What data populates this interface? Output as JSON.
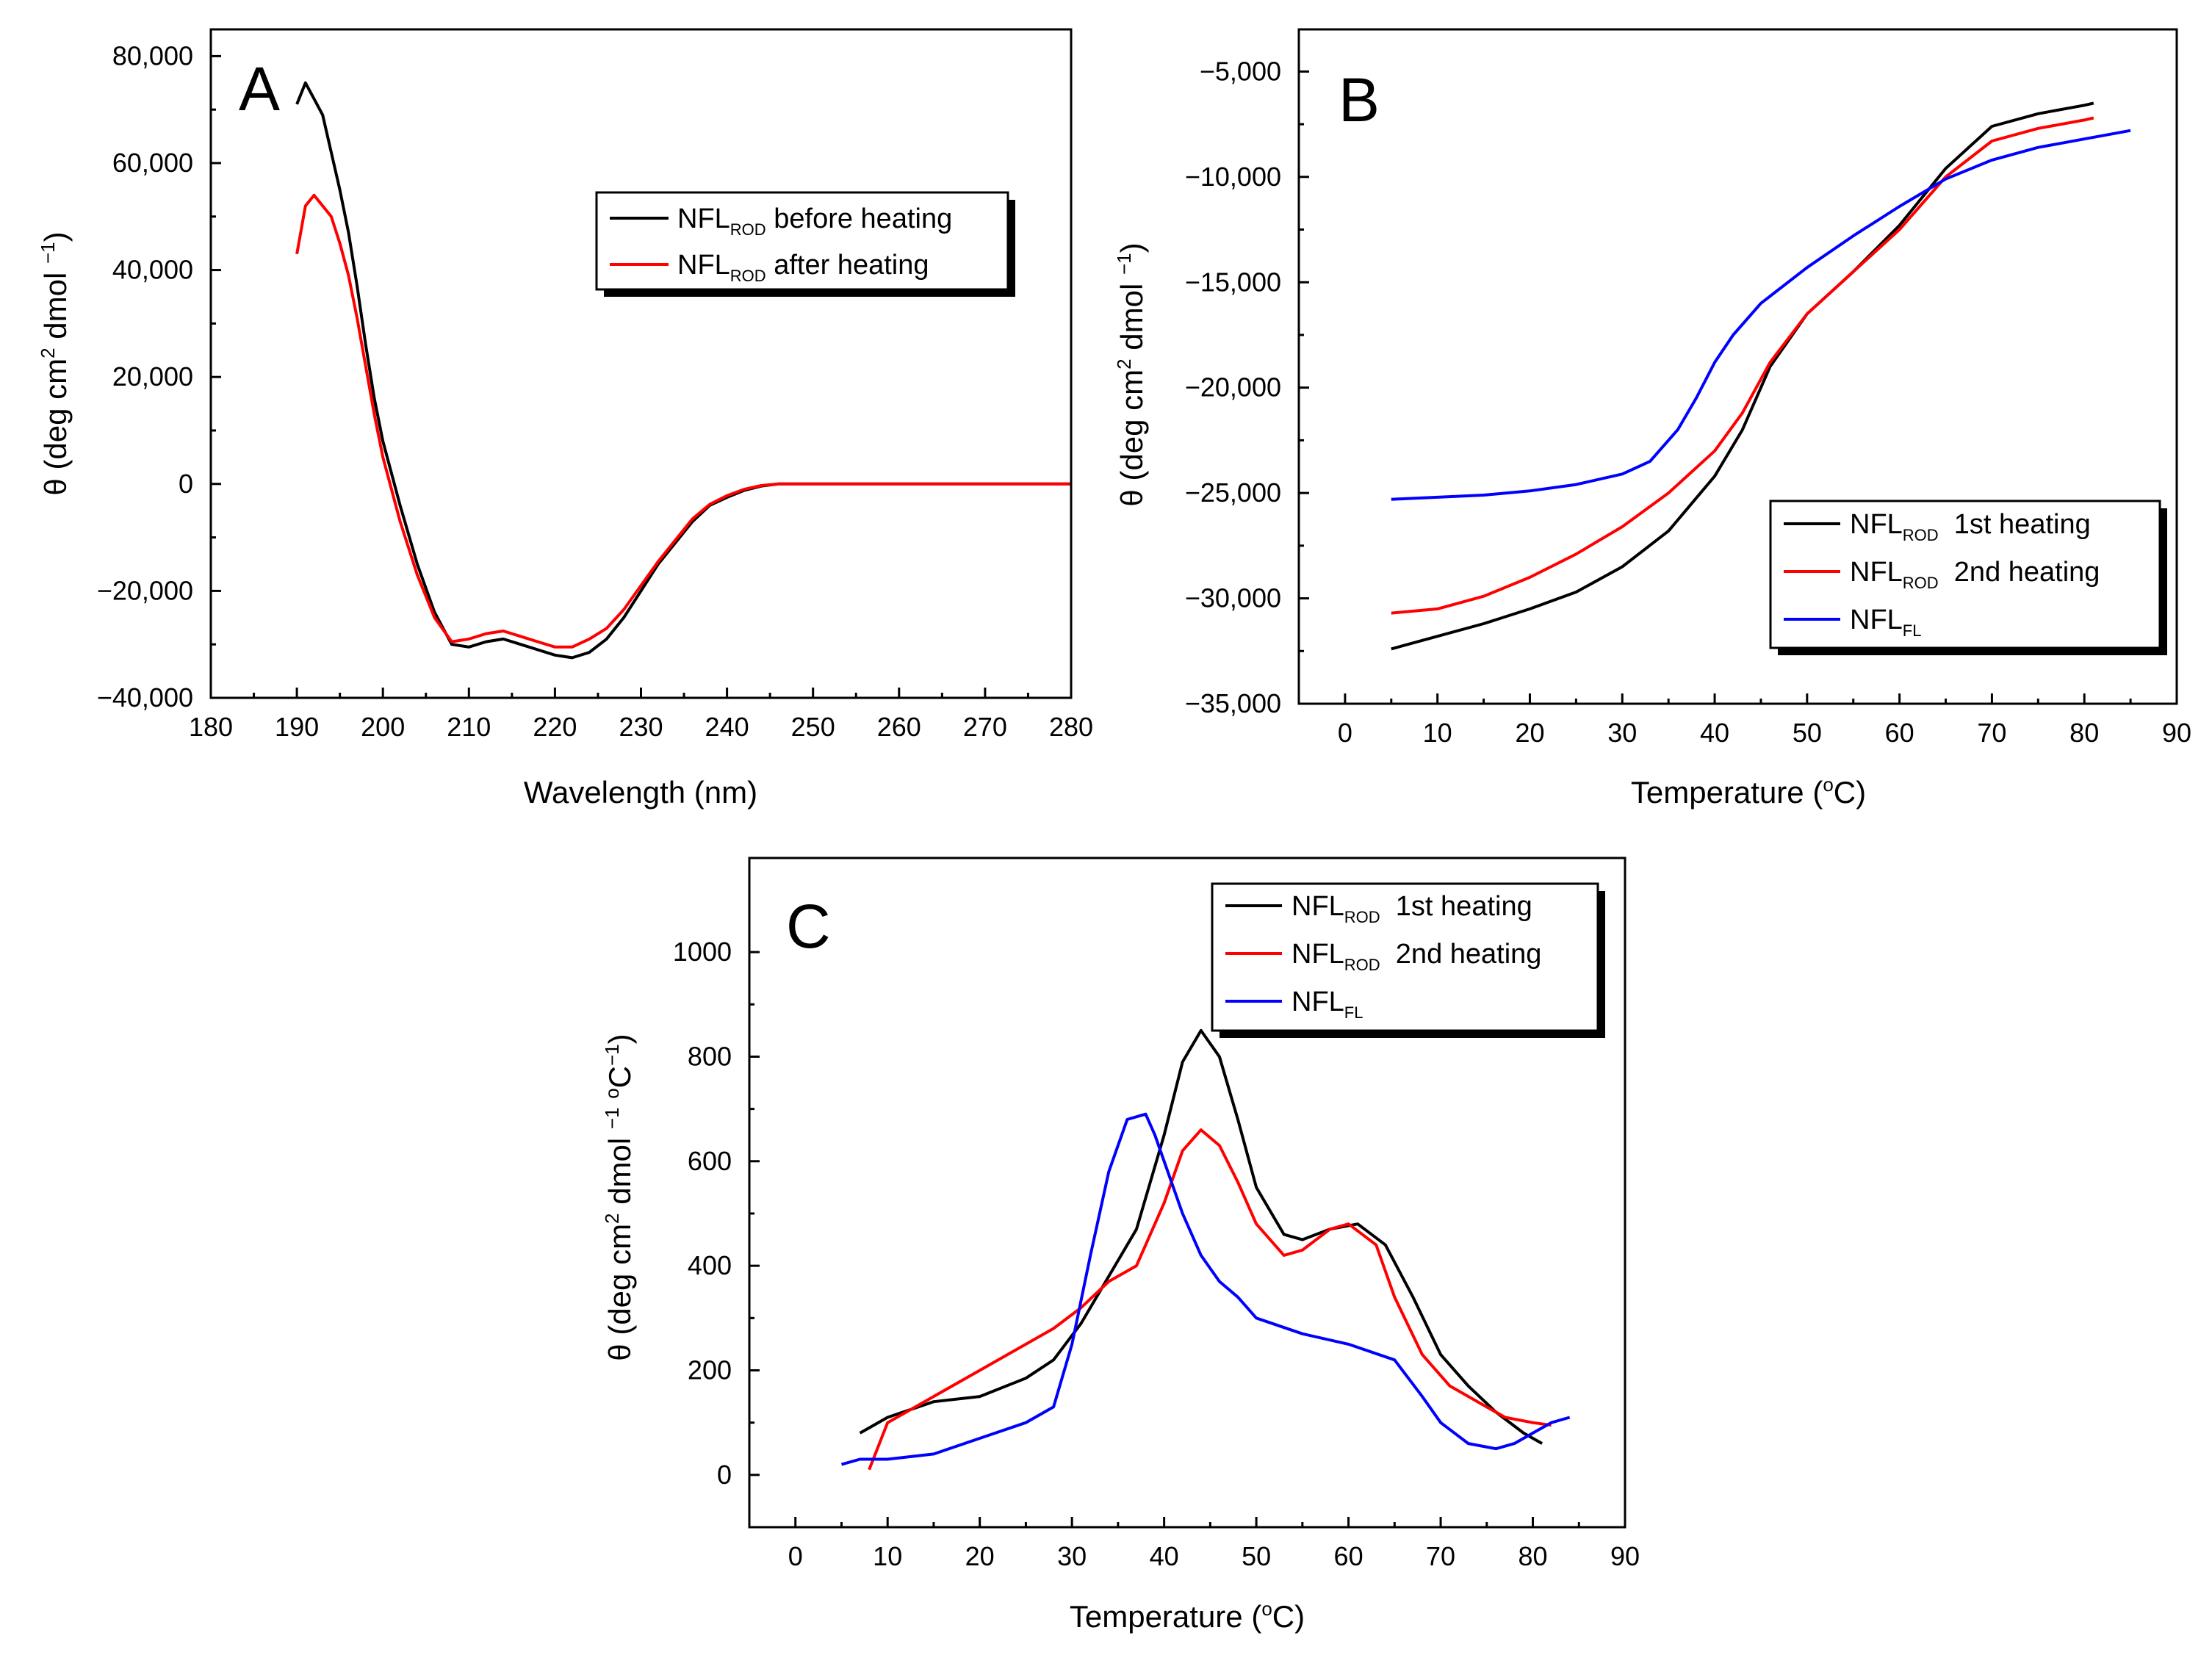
{
  "chart_data": [
    {
      "type": "line",
      "panel": "A",
      "xlabel": "Wavelength (nm)",
      "ylabel": "θ (deg cm2 dmol −1)",
      "xlim": [
        180,
        280
      ],
      "ylim": [
        -40000,
        85000
      ],
      "xticks": [
        180,
        190,
        200,
        210,
        220,
        230,
        240,
        250,
        260,
        270,
        280
      ],
      "xtick_labels": [
        "180",
        "190",
        "200",
        "210",
        "220",
        "230",
        "240",
        "250",
        "260",
        "270",
        "280"
      ],
      "yticks": [
        -40000,
        -20000,
        0,
        20000,
        40000,
        60000,
        80000
      ],
      "ytick_labels": [
        "−40,000",
        "−20,000",
        "0",
        "20,000",
        "40,000",
        "60,000",
        "80,000"
      ],
      "legend": {
        "position": "top-right"
      },
      "series": [
        {
          "name": "NFL",
          "sub": "ROD",
          "suffix": " before heating",
          "color": "#000000",
          "x": [
            190,
            191,
            192,
            193,
            194,
            195,
            196,
            197,
            198,
            199,
            200,
            202,
            204,
            206,
            208,
            210,
            212,
            214,
            216,
            218,
            220,
            222,
            224,
            226,
            228,
            230,
            232,
            234,
            236,
            238,
            240,
            242,
            244,
            246,
            250,
            260,
            270,
            280
          ],
          "y": [
            71000,
            75000,
            72000,
            69000,
            62000,
            55000,
            47000,
            37000,
            26000,
            16000,
            8000,
            -4000,
            -15000,
            -24000,
            -30000,
            -30500,
            -29500,
            -29000,
            -30000,
            -31000,
            -32000,
            -32500,
            -31500,
            -29000,
            -25000,
            -20000,
            -15000,
            -11000,
            -7000,
            -4000,
            -2500,
            -1200,
            -400,
            0,
            0,
            0,
            0,
            0
          ]
        },
        {
          "name": "NFL",
          "sub": "ROD",
          "suffix": " after heating",
          "color": "#ff0000",
          "x": [
            190,
            191,
            192,
            193,
            194,
            195,
            196,
            197,
            198,
            199,
            200,
            202,
            204,
            206,
            208,
            210,
            212,
            214,
            216,
            218,
            220,
            222,
            224,
            226,
            228,
            230,
            232,
            234,
            236,
            238,
            240,
            242,
            244,
            246,
            250,
            260,
            270,
            280
          ],
          "y": [
            43000,
            52000,
            54000,
            52000,
            50000,
            45000,
            39000,
            31000,
            22000,
            13000,
            5000,
            -7000,
            -17000,
            -25000,
            -29500,
            -29000,
            -28000,
            -27500,
            -28500,
            -29500,
            -30500,
            -30500,
            -29000,
            -27000,
            -23500,
            -19000,
            -14500,
            -10500,
            -6500,
            -3800,
            -2200,
            -1000,
            -300,
            0,
            0,
            0,
            0,
            0
          ]
        }
      ]
    },
    {
      "type": "line",
      "panel": "B",
      "xlabel": "Temperature (°C)",
      "ylabel": "θ (deg cm2 dmol −1)",
      "xlim": [
        -5,
        90
      ],
      "ylim": [
        -35000,
        -3000
      ],
      "xticks": [
        0,
        10,
        20,
        30,
        40,
        50,
        60,
        70,
        80,
        90
      ],
      "xtick_labels": [
        "0",
        "10",
        "20",
        "30",
        "40",
        "50",
        "60",
        "70",
        "80",
        "90"
      ],
      "yticks": [
        -35000,
        -30000,
        -25000,
        -20000,
        -15000,
        -10000,
        -5000
      ],
      "ytick_labels": [
        "−35,000",
        "−30,000",
        "−25,000",
        "−20,000",
        "−15,000",
        "−10,000",
        "−5,000"
      ],
      "legend": {
        "position": "bottom-right"
      },
      "series": [
        {
          "name": "NFL",
          "sub": "ROD",
          "suffix": "  1st heating",
          "color": "#000000",
          "x": [
            5,
            10,
            15,
            20,
            25,
            30,
            35,
            40,
            43,
            46,
            50,
            55,
            60,
            65,
            70,
            75,
            80,
            81
          ],
          "y": [
            -32400,
            -31800,
            -31200,
            -30500,
            -29700,
            -28500,
            -26800,
            -24200,
            -22000,
            -19000,
            -16500,
            -14500,
            -12300,
            -9600,
            -7600,
            -7000,
            -6600,
            -6500
          ]
        },
        {
          "name": "NFL",
          "sub": "ROD",
          "suffix": "  2nd heating",
          "color": "#ff0000",
          "x": [
            5,
            10,
            15,
            20,
            25,
            30,
            35,
            40,
            43,
            46,
            50,
            55,
            60,
            65,
            70,
            75,
            80,
            81
          ],
          "y": [
            -30700,
            -30500,
            -29900,
            -29000,
            -27900,
            -26600,
            -25000,
            -23000,
            -21200,
            -18800,
            -16500,
            -14500,
            -12500,
            -10000,
            -8300,
            -7700,
            -7300,
            -7200
          ]
        },
        {
          "name": "NFL",
          "sub": "FL",
          "suffix": "",
          "color": "#0000ff",
          "x": [
            5,
            10,
            15,
            20,
            25,
            30,
            33,
            36,
            38,
            40,
            42,
            45,
            50,
            55,
            60,
            65,
            70,
            75,
            80,
            85
          ],
          "y": [
            -25300,
            -25200,
            -25100,
            -24900,
            -24600,
            -24100,
            -23500,
            -22000,
            -20500,
            -18800,
            -17500,
            -16000,
            -14300,
            -12800,
            -11400,
            -10100,
            -9200,
            -8600,
            -8200,
            -7800
          ]
        }
      ]
    },
    {
      "type": "line",
      "panel": "C",
      "xlabel": "Temperature (°C)",
      "ylabel": "θ (deg cm2 dmol −1 °C−1)",
      "xlim": [
        -5,
        90
      ],
      "ylim": [
        -100,
        1180
      ],
      "xticks": [
        0,
        10,
        20,
        30,
        40,
        50,
        60,
        70,
        80,
        90
      ],
      "xtick_labels": [
        "0",
        "10",
        "20",
        "30",
        "40",
        "50",
        "60",
        "70",
        "80",
        "90"
      ],
      "yticks": [
        0,
        200,
        400,
        600,
        800,
        1000
      ],
      "ytick_labels": [
        "0",
        "200",
        "400",
        "600",
        "800",
        "1000"
      ],
      "legend": {
        "position": "top-right"
      },
      "series": [
        {
          "name": "NFL",
          "sub": "ROD",
          "suffix": "  1st heating",
          "color": "#000000",
          "x": [
            7,
            10,
            15,
            20,
            25,
            28,
            31,
            34,
            37,
            40,
            42,
            44,
            46,
            48,
            50,
            53,
            55,
            58,
            61,
            64,
            67,
            70,
            73,
            76,
            79,
            81
          ],
          "y": [
            80,
            110,
            140,
            150,
            185,
            220,
            290,
            380,
            470,
            650,
            790,
            850,
            800,
            680,
            550,
            460,
            450,
            470,
            480,
            440,
            340,
            230,
            170,
            120,
            80,
            60
          ]
        },
        {
          "name": "NFL",
          "sub": "ROD",
          "suffix": "  2nd heating",
          "color": "#ff0000",
          "x": [
            8,
            10,
            15,
            20,
            25,
            28,
            31,
            34,
            37,
            40,
            42,
            44,
            46,
            48,
            50,
            53,
            55,
            58,
            60,
            63,
            65,
            68,
            71,
            74,
            77,
            80,
            82
          ],
          "y": [
            10,
            100,
            150,
            200,
            250,
            280,
            320,
            370,
            400,
            520,
            620,
            660,
            630,
            560,
            480,
            420,
            430,
            470,
            480,
            440,
            340,
            230,
            170,
            140,
            110,
            100,
            95
          ]
        },
        {
          "name": "NFL",
          "sub": "FL",
          "suffix": "",
          "color": "#0000ff",
          "x": [
            5,
            7,
            10,
            15,
            20,
            25,
            28,
            30,
            32,
            34,
            36,
            38,
            39,
            40,
            42,
            44,
            46,
            48,
            50,
            55,
            60,
            65,
            68,
            70,
            73,
            76,
            78,
            80,
            82,
            84
          ],
          "y": [
            20,
            30,
            30,
            40,
            70,
            100,
            130,
            250,
            420,
            580,
            680,
            690,
            650,
            600,
            500,
            420,
            370,
            340,
            300,
            270,
            250,
            220,
            150,
            100,
            60,
            50,
            60,
            80,
            100,
            110
          ]
        }
      ]
    }
  ]
}
